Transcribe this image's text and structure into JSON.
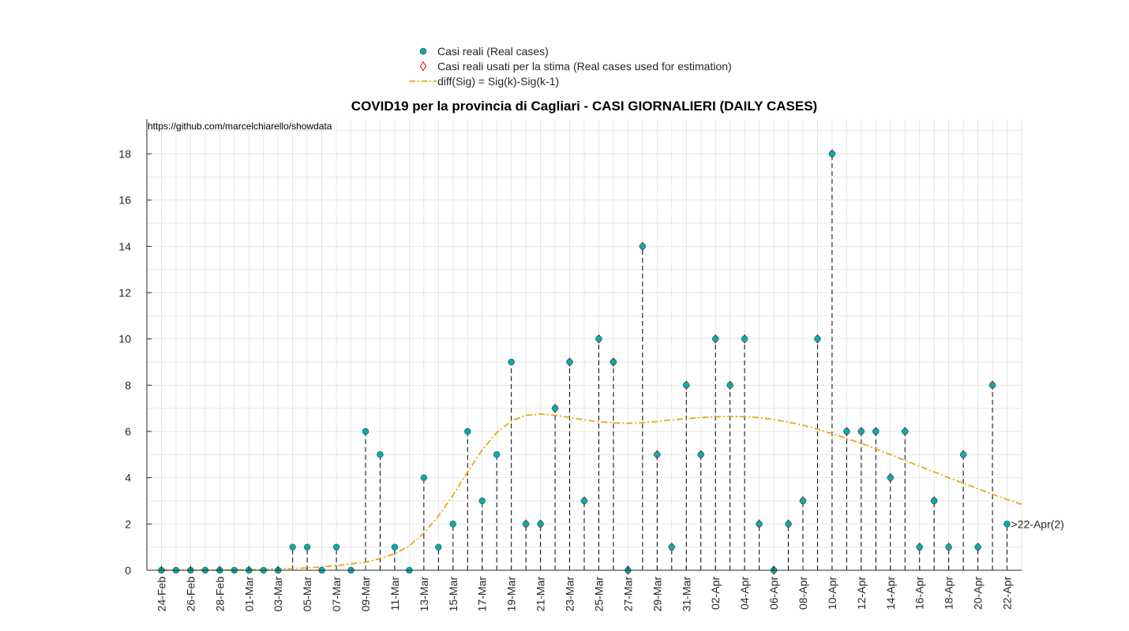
{
  "chart_data": {
    "type": "scatter",
    "title": "COVID19 per la provincia di Cagliari - CASI GIORNALIERI (DAILY CASES)",
    "source_note": "https://github.com/marcelchiarello/showdata",
    "xlabel": "",
    "ylabel": "",
    "ylim": [
      0,
      19.5
    ],
    "yticks": [
      "0",
      "2",
      "4",
      "6",
      "8",
      "10",
      "12",
      "14",
      "16",
      "18"
    ],
    "ytick_values": [
      0,
      2,
      4,
      6,
      8,
      10,
      12,
      14,
      16,
      18
    ],
    "xtick_labels": [
      "24-Feb",
      "26-Feb",
      "28-Feb",
      "01-Mar",
      "03-Mar",
      "05-Mar",
      "07-Mar",
      "09-Mar",
      "11-Mar",
      "13-Mar",
      "15-Mar",
      "17-Mar",
      "19-Mar",
      "21-Mar",
      "23-Mar",
      "25-Mar",
      "27-Mar",
      "29-Mar",
      "31-Mar",
      "02-Apr",
      "04-Apr",
      "06-Apr",
      "08-Apr",
      "10-Apr",
      "12-Apr",
      "14-Apr",
      "16-Apr",
      "18-Apr",
      "20-Apr",
      "22-Apr"
    ],
    "grid": true,
    "legend_position": "top-center",
    "legend": [
      {
        "label": "Casi reali (Real cases)",
        "marker": "circle",
        "color": "#14a8a8"
      },
      {
        "label": "Casi reali usati per la stima (Real cases used for estimation)",
        "marker": "diamond",
        "color": "#ff0000"
      },
      {
        "label": "diff(Sig) = Sig(k)-Sig(k-1)",
        "marker": "dashdot-line",
        "color": "#e6a817"
      }
    ],
    "annotation": ">22-Apr(2)",
    "real_cases": [
      0,
      0,
      0,
      0,
      0,
      0,
      0,
      0,
      0,
      1,
      1,
      0,
      1,
      0,
      6,
      5,
      1,
      0,
      4,
      1,
      2,
      6,
      3,
      5,
      9,
      2,
      2,
      7,
      9,
      3,
      10,
      9,
      0,
      14,
      5,
      1,
      8,
      5,
      10,
      8,
      10,
      2,
      0,
      2,
      3,
      10,
      18,
      6,
      6,
      6,
      4,
      6,
      1,
      3,
      1,
      5,
      1,
      8,
      2
    ],
    "estimation_start_index": 25,
    "estimation_end_index": 57,
    "fit_curve": [
      [
        0,
        0
      ],
      [
        6,
        0.02
      ],
      [
        10,
        0.1
      ],
      [
        12,
        0.2
      ],
      [
        14,
        0.35
      ],
      [
        15,
        0.5
      ],
      [
        16,
        0.72
      ],
      [
        17,
        1.05
      ],
      [
        18,
        1.6
      ],
      [
        19,
        2.35
      ],
      [
        20,
        3.25
      ],
      [
        21,
        4.25
      ],
      [
        22,
        5.2
      ],
      [
        23,
        5.95
      ],
      [
        24,
        6.45
      ],
      [
        25,
        6.7
      ],
      [
        26,
        6.75
      ],
      [
        27,
        6.7
      ],
      [
        28,
        6.6
      ],
      [
        29,
        6.5
      ],
      [
        30,
        6.42
      ],
      [
        31,
        6.37
      ],
      [
        32,
        6.35
      ],
      [
        33,
        6.38
      ],
      [
        34,
        6.43
      ],
      [
        35,
        6.5
      ],
      [
        36,
        6.55
      ],
      [
        37,
        6.6
      ],
      [
        38,
        6.63
      ],
      [
        39,
        6.65
      ],
      [
        40,
        6.64
      ],
      [
        41,
        6.6
      ],
      [
        42,
        6.52
      ],
      [
        43,
        6.4
      ],
      [
        44,
        6.27
      ],
      [
        45,
        6.1
      ],
      [
        46,
        5.9
      ],
      [
        47,
        5.7
      ],
      [
        48,
        5.48
      ],
      [
        49,
        5.25
      ],
      [
        50,
        5.0
      ],
      [
        51,
        4.75
      ],
      [
        52,
        4.5
      ],
      [
        53,
        4.25
      ],
      [
        54,
        4.0
      ],
      [
        55,
        3.76
      ],
      [
        56,
        3.52
      ],
      [
        57,
        3.28
      ],
      [
        58,
        3.06
      ],
      [
        59,
        2.85
      ]
    ]
  },
  "colors": {
    "real": "#14a8a8",
    "estimation": "#ff0000",
    "fit": "#e6a817",
    "stem": "#000000",
    "grid": "#dcdcdc"
  }
}
